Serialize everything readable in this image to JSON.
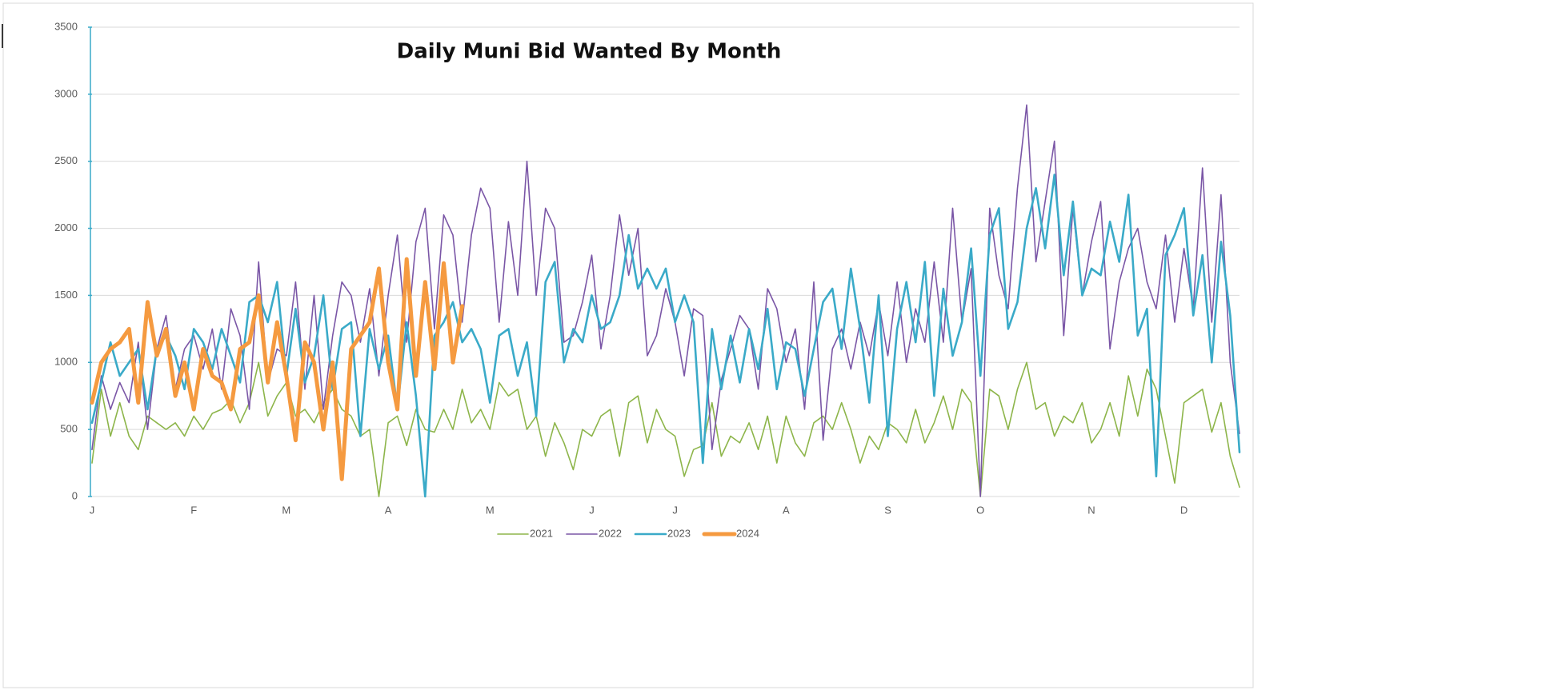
{
  "chart_data": {
    "type": "line",
    "title": "Daily Muni Bid Wanted By Month",
    "categories": [
      "J",
      null,
      null,
      null,
      null,
      null,
      null,
      null,
      null,
      null,
      null,
      "F",
      null,
      null,
      null,
      null,
      null,
      null,
      null,
      null,
      null,
      "M",
      null,
      null,
      null,
      null,
      null,
      null,
      null,
      null,
      null,
      null,
      "A",
      null,
      null,
      null,
      null,
      null,
      null,
      null,
      null,
      null,
      null,
      "M",
      null,
      null,
      null,
      null,
      null,
      null,
      null,
      null,
      null,
      null,
      "J",
      null,
      null,
      null,
      null,
      null,
      null,
      null,
      null,
      "J",
      null,
      null,
      null,
      null,
      null,
      null,
      null,
      null,
      null,
      null,
      null,
      "A",
      null,
      null,
      null,
      null,
      null,
      null,
      null,
      null,
      null,
      null,
      "S",
      null,
      null,
      null,
      null,
      null,
      null,
      null,
      null,
      null,
      "O",
      null,
      null,
      null,
      null,
      null,
      null,
      null,
      null,
      null,
      null,
      null,
      "N",
      null,
      null,
      null,
      null,
      null,
      null,
      null,
      null,
      null,
      "D",
      null,
      null,
      null,
      null,
      null,
      null
    ],
    "ylim": [
      0,
      3500
    ],
    "yticks": [
      0,
      500,
      1000,
      1500,
      2000,
      2500,
      3000,
      3500
    ],
    "grid": true,
    "legend": "bottom",
    "series": [
      {
        "name": "2021",
        "color": "#8db54a",
        "values": [
          250,
          800,
          450,
          700,
          450,
          350,
          600,
          550,
          500,
          550,
          450,
          600,
          500,
          620,
          650,
          720,
          550,
          700,
          1000,
          600,
          750,
          850,
          600,
          650,
          550,
          700,
          800,
          650,
          600,
          450,
          500,
          0,
          550,
          600,
          380,
          650,
          500,
          480,
          650,
          500,
          800,
          550,
          650,
          500,
          850,
          750,
          800,
          500,
          600,
          300,
          550,
          400,
          200,
          500,
          450,
          600,
          650,
          300,
          700,
          750,
          400,
          650,
          500,
          450,
          150,
          350,
          380,
          700,
          300,
          450,
          400,
          550,
          350,
          600,
          250,
          600,
          400,
          300,
          550,
          600,
          500,
          700,
          500,
          250,
          450,
          350,
          550,
          500,
          400,
          650,
          400,
          550,
          750,
          500,
          800,
          700,
          0,
          800,
          750,
          500,
          800,
          1000,
          650,
          700,
          450,
          600,
          550,
          700,
          400,
          500,
          700,
          450,
          900,
          600,
          950,
          800,
          450,
          100,
          700,
          750,
          800,
          480,
          700,
          300,
          70
        ]
      },
      {
        "name": "2022",
        "color": "#7a56a6",
        "values": [
          350,
          900,
          650,
          850,
          700,
          1150,
          500,
          1100,
          1350,
          800,
          1100,
          1200,
          950,
          1250,
          800,
          1400,
          1200,
          650,
          1750,
          850,
          1100,
          1050,
          1600,
          800,
          1500,
          650,
          1200,
          1600,
          1500,
          1150,
          1550,
          900,
          1500,
          1950,
          1150,
          1900,
          2150,
          1250,
          2100,
          1950,
          1300,
          1950,
          2300,
          2150,
          1300,
          2050,
          1500,
          2500,
          1500,
          2150,
          2000,
          1150,
          1200,
          1450,
          1800,
          1100,
          1500,
          2100,
          1650,
          2000,
          1050,
          1200,
          1550,
          1300,
          900,
          1400,
          1350,
          350,
          870,
          1100,
          1350,
          1250,
          800,
          1550,
          1400,
          1000,
          1250,
          650,
          1600,
          420,
          1100,
          1250,
          950,
          1300,
          1050,
          1450,
          1050,
          1600,
          1000,
          1400,
          1150,
          1750,
          1150,
          2150,
          1300,
          1700,
          0,
          2150,
          1650,
          1400,
          2300,
          2920,
          1750,
          2200,
          2650,
          1200,
          2150,
          1500,
          1900,
          2200,
          1100,
          1600,
          1850,
          2000,
          1600,
          1400,
          1950,
          1300,
          1850,
          1400,
          2450,
          1300,
          2250,
          1000,
          470
        ]
      },
      {
        "name": "2023",
        "color": "#3aaac8",
        "values": [
          550,
          850,
          1150,
          900,
          1000,
          1100,
          650,
          1100,
          1200,
          1050,
          800,
          1250,
          1150,
          950,
          1250,
          1050,
          850,
          1450,
          1500,
          1300,
          1600,
          900,
          1400,
          850,
          1050,
          1500,
          800,
          1250,
          1300,
          450,
          1250,
          950,
          1200,
          650,
          1300,
          750,
          0,
          1200,
          1300,
          1450,
          1150,
          1250,
          1100,
          700,
          1200,
          1250,
          900,
          1150,
          600,
          1600,
          1750,
          1000,
          1250,
          1150,
          1500,
          1250,
          1300,
          1500,
          1950,
          1550,
          1700,
          1550,
          1700,
          1300,
          1500,
          1300,
          250,
          1250,
          800,
          1200,
          850,
          1250,
          950,
          1400,
          800,
          1150,
          1100,
          750,
          1100,
          1450,
          1550,
          1100,
          1700,
          1250,
          700,
          1500,
          450,
          1250,
          1600,
          1150,
          1750,
          750,
          1550,
          1050,
          1300,
          1850,
          900,
          1950,
          2150,
          1250,
          1450,
          2000,
          2300,
          1850,
          2400,
          1650,
          2200,
          1500,
          1700,
          1650,
          2050,
          1750,
          2250,
          1200,
          1400,
          150,
          1800,
          1950,
          2150,
          1350,
          1800,
          1000,
          1900,
          1350,
          330
        ]
      },
      {
        "name": "2024",
        "color": "#f59a40",
        "values": [
          700,
          1000,
          1100,
          1150,
          1250,
          700,
          1450,
          1050,
          1250,
          750,
          1000,
          650,
          1100,
          900,
          850,
          650,
          1100,
          1150,
          1500,
          850,
          1300,
          900,
          420,
          1150,
          1000,
          500,
          1000,
          130,
          1100,
          1200,
          1300,
          1700,
          1000,
          650,
          1770,
          900,
          1600,
          950,
          1740,
          1000,
          1420,
          null,
          null,
          null,
          null,
          null,
          null,
          null,
          null,
          null,
          null,
          null,
          null,
          null,
          null,
          null,
          null,
          null,
          null,
          null,
          null,
          null,
          null,
          null,
          null,
          null,
          null,
          null,
          null,
          null,
          null,
          null,
          null,
          null,
          null,
          null,
          null,
          null,
          null,
          null,
          null,
          null,
          null,
          null,
          null,
          null,
          null,
          null,
          null,
          null,
          null,
          null,
          null,
          null,
          null,
          null,
          null,
          null,
          null,
          null,
          null,
          null,
          null,
          null,
          null,
          null,
          null,
          null,
          null,
          null,
          null,
          null,
          null,
          null,
          null,
          null,
          null,
          null,
          null,
          null,
          null,
          null,
          null,
          null,
          null
        ]
      }
    ]
  }
}
